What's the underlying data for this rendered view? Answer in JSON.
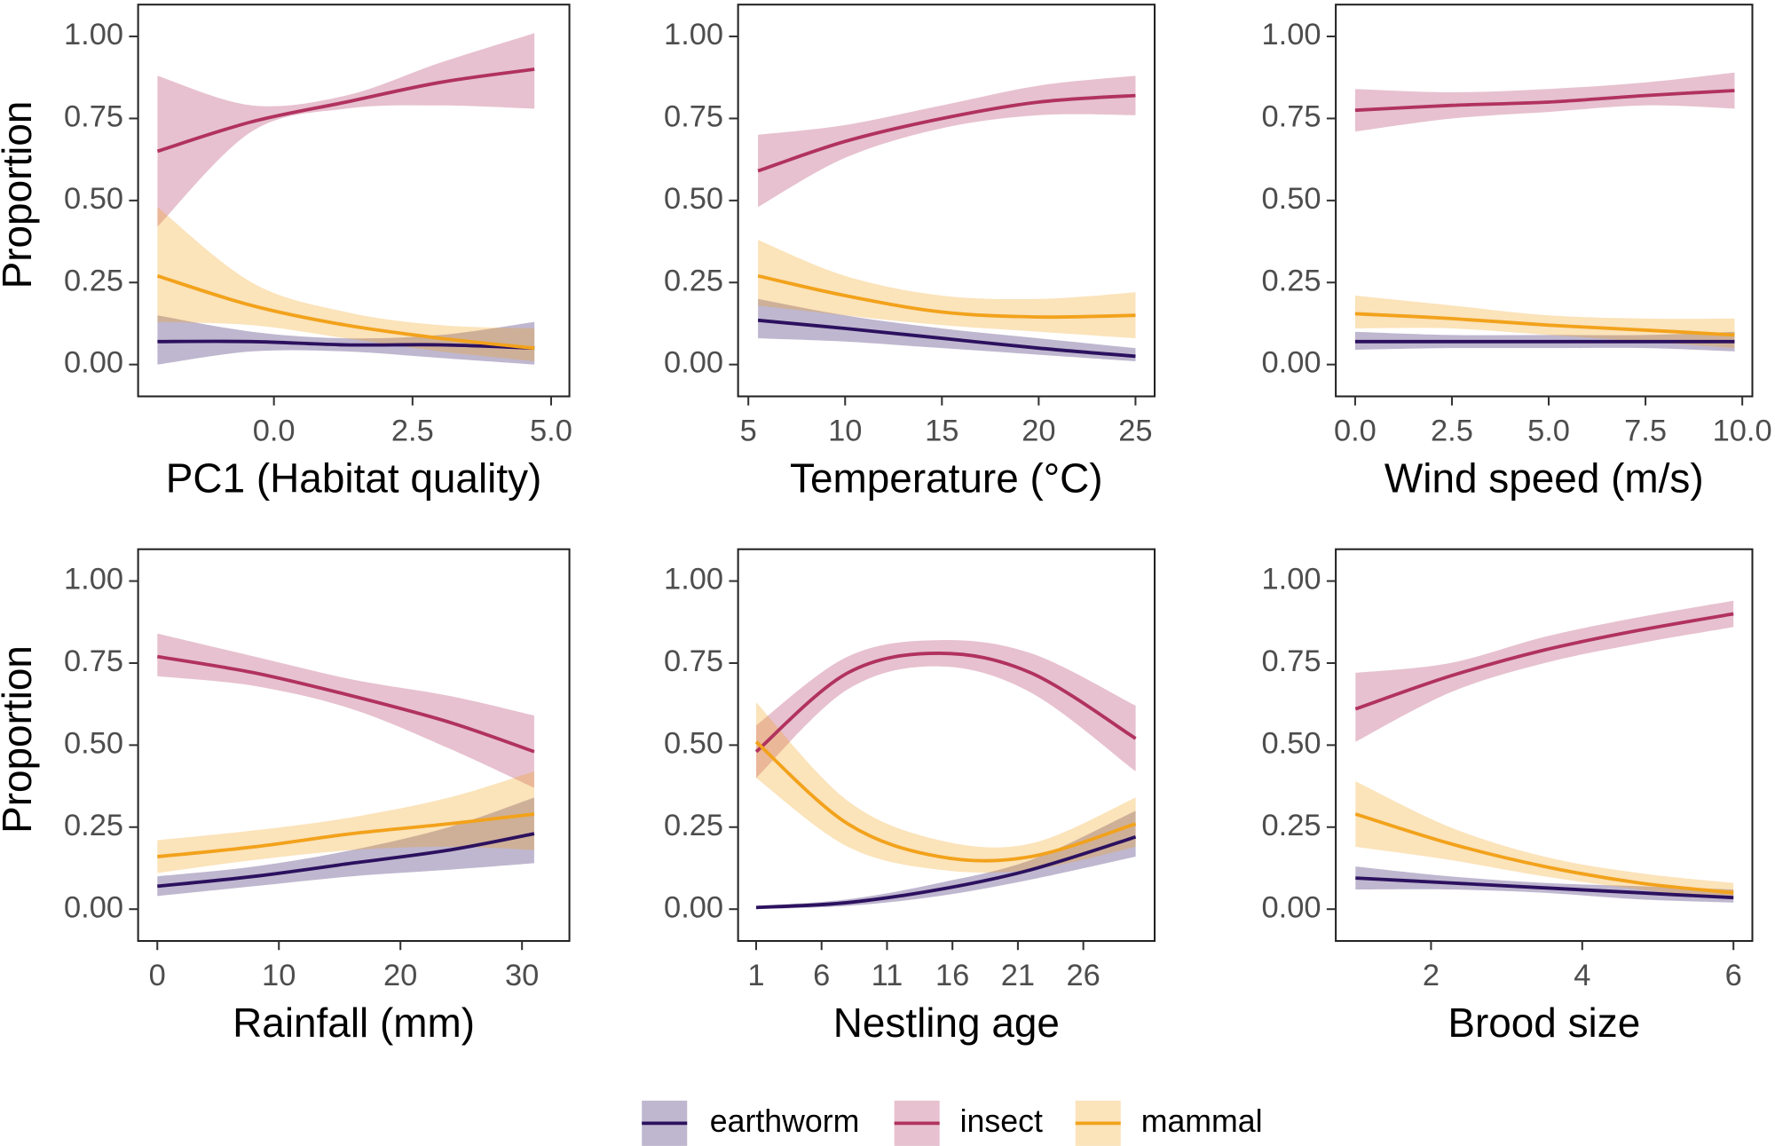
{
  "chart_data": [
    {
      "type": "line",
      "x_label": "PC1 (Habitat quality)",
      "y_label": "Proportion",
      "legend": "bottom",
      "xlim": [
        -2.45,
        5.33
      ],
      "xticks": [
        {
          "value": 0,
          "label": "0.0"
        },
        {
          "value": 2.5,
          "label": "2.5"
        },
        {
          "value": 5,
          "label": "5.0"
        }
      ],
      "ylim": [
        -0.097,
        1.097
      ],
      "yticks": [
        {
          "value": 0,
          "label": "0.00"
        },
        {
          "value": 0.25,
          "label": "0.25"
        },
        {
          "value": 0.5,
          "label": "0.50"
        },
        {
          "value": 0.75,
          "label": "0.75"
        },
        {
          "value": 1,
          "label": "1.00"
        }
      ],
      "x": [
        -2.1,
        -0.4,
        1.3,
        3.0,
        4.7
      ],
      "series": [
        {
          "name": "earthworm",
          "color": "#2c115f",
          "values": [
            0.07,
            0.07,
            0.06,
            0.06,
            0.05
          ],
          "lower": [
            0.0,
            0.04,
            0.04,
            0.02,
            0.0
          ],
          "upper": [
            0.15,
            0.1,
            0.08,
            0.09,
            0.13
          ]
        },
        {
          "name": "insect",
          "color": "#b1325f",
          "values": [
            0.65,
            0.74,
            0.8,
            0.86,
            0.9
          ],
          "lower": [
            0.42,
            0.71,
            0.78,
            0.79,
            0.78
          ],
          "upper": [
            0.88,
            0.79,
            0.82,
            0.92,
            1.01
          ]
        },
        {
          "name": "mammal",
          "color": "#f2a21b",
          "values": [
            0.27,
            0.18,
            0.12,
            0.08,
            0.05
          ],
          "lower": [
            0.13,
            0.12,
            0.08,
            0.04,
            0.01
          ],
          "upper": [
            0.48,
            0.25,
            0.16,
            0.12,
            0.11
          ]
        }
      ]
    },
    {
      "type": "line",
      "x_label": "Temperature (°C)",
      "xlim": [
        4.47,
        25.99
      ],
      "xticks": [
        5,
        10,
        15,
        20,
        25
      ],
      "ylim": [
        -0.097,
        1.097
      ],
      "yticks": [
        {
          "value": 0,
          "label": "0.00"
        },
        {
          "value": 0.25,
          "label": "0.25"
        },
        {
          "value": 0.5,
          "label": "0.50"
        },
        {
          "value": 0.75,
          "label": "0.75"
        },
        {
          "value": 1,
          "label": "1.00"
        }
      ],
      "x": [
        5.5,
        10,
        15,
        20,
        25
      ],
      "series": [
        {
          "name": "earthworm",
          "color": "#2c115f",
          "values": [
            0.135,
            0.11,
            0.08,
            0.05,
            0.025
          ],
          "lower": [
            0.08,
            0.07,
            0.05,
            0.03,
            0.01
          ],
          "upper": [
            0.2,
            0.15,
            0.11,
            0.08,
            0.05
          ]
        },
        {
          "name": "insect",
          "color": "#b1325f",
          "values": [
            0.59,
            0.68,
            0.75,
            0.8,
            0.82
          ],
          "lower": [
            0.48,
            0.63,
            0.72,
            0.76,
            0.76
          ],
          "upper": [
            0.7,
            0.73,
            0.79,
            0.85,
            0.88
          ]
        },
        {
          "name": "mammal",
          "color": "#f2a21b",
          "values": [
            0.27,
            0.21,
            0.16,
            0.145,
            0.15
          ],
          "lower": [
            0.18,
            0.15,
            0.12,
            0.1,
            0.08
          ],
          "upper": [
            0.38,
            0.27,
            0.21,
            0.2,
            0.22
          ]
        }
      ]
    },
    {
      "type": "line",
      "x_label": "Wind speed (m/s)",
      "xlim": [
        -0.5,
        10.26
      ],
      "xticks": [
        {
          "value": 0,
          "label": "0.0"
        },
        {
          "value": 2.5,
          "label": "2.5"
        },
        {
          "value": 5,
          "label": "5.0"
        },
        {
          "value": 7.5,
          "label": "7.5"
        },
        {
          "value": 10,
          "label": "10.0"
        }
      ],
      "ylim": [
        -0.097,
        1.097
      ],
      "yticks": [
        {
          "value": 0,
          "label": "0.00"
        },
        {
          "value": 0.25,
          "label": "0.25"
        },
        {
          "value": 0.5,
          "label": "0.50"
        },
        {
          "value": 0.75,
          "label": "0.75"
        },
        {
          "value": 1,
          "label": "1.00"
        }
      ],
      "x": [
        0,
        2.5,
        5,
        7.5,
        9.8
      ],
      "series": [
        {
          "name": "earthworm",
          "color": "#2c115f",
          "values": [
            0.07,
            0.07,
            0.07,
            0.07,
            0.07
          ],
          "lower": [
            0.045,
            0.05,
            0.05,
            0.05,
            0.04
          ],
          "upper": [
            0.1,
            0.09,
            0.09,
            0.09,
            0.1
          ]
        },
        {
          "name": "insect",
          "color": "#b1325f",
          "values": [
            0.775,
            0.79,
            0.8,
            0.82,
            0.835
          ],
          "lower": [
            0.71,
            0.75,
            0.77,
            0.79,
            0.78
          ],
          "upper": [
            0.84,
            0.83,
            0.84,
            0.86,
            0.89
          ]
        },
        {
          "name": "mammal",
          "color": "#f2a21b",
          "values": [
            0.155,
            0.14,
            0.12,
            0.105,
            0.09
          ],
          "lower": [
            0.11,
            0.11,
            0.09,
            0.07,
            0.05
          ],
          "upper": [
            0.21,
            0.18,
            0.15,
            0.14,
            0.14
          ]
        }
      ]
    },
    {
      "type": "line",
      "x_label": "Rainfall (mm)",
      "y_label": "Proportion",
      "xlim": [
        -1.58,
        33.9
      ],
      "xticks": [
        0,
        10,
        20,
        30
      ],
      "ylim": [
        -0.097,
        1.097
      ],
      "yticks": [
        {
          "value": 0,
          "label": "0.00"
        },
        {
          "value": 0.25,
          "label": "0.25"
        },
        {
          "value": 0.5,
          "label": "0.50"
        },
        {
          "value": 0.75,
          "label": "0.75"
        },
        {
          "value": 1,
          "label": "1.00"
        }
      ],
      "x": [
        0,
        8,
        16,
        24,
        31
      ],
      "series": [
        {
          "name": "earthworm",
          "color": "#2c115f",
          "values": [
            0.07,
            0.1,
            0.14,
            0.18,
            0.23
          ],
          "lower": [
            0.04,
            0.07,
            0.1,
            0.12,
            0.14
          ],
          "upper": [
            0.1,
            0.13,
            0.18,
            0.25,
            0.34
          ]
        },
        {
          "name": "insect",
          "color": "#b1325f",
          "values": [
            0.77,
            0.72,
            0.65,
            0.57,
            0.48
          ],
          "lower": [
            0.71,
            0.68,
            0.61,
            0.49,
            0.37
          ],
          "upper": [
            0.84,
            0.77,
            0.7,
            0.65,
            0.59
          ]
        },
        {
          "name": "mammal",
          "color": "#f2a21b",
          "values": [
            0.16,
            0.19,
            0.23,
            0.26,
            0.29
          ],
          "lower": [
            0.11,
            0.15,
            0.18,
            0.19,
            0.18
          ],
          "upper": [
            0.21,
            0.24,
            0.28,
            0.34,
            0.42
          ]
        }
      ]
    },
    {
      "type": "line",
      "x_label": "Nestling age",
      "xlim": [
        -0.38,
        31.45
      ],
      "xticks": [
        1,
        6,
        11,
        16,
        21,
        26
      ],
      "ylim": [
        -0.097,
        1.097
      ],
      "yticks": [
        {
          "value": 0,
          "label": "0.00"
        },
        {
          "value": 0.25,
          "label": "0.25"
        },
        {
          "value": 0.5,
          "label": "0.50"
        },
        {
          "value": 0.75,
          "label": "0.75"
        },
        {
          "value": 1,
          "label": "1.00"
        }
      ],
      "x": [
        1,
        8,
        15,
        22,
        30
      ],
      "series": [
        {
          "name": "earthworm",
          "color": "#2c115f",
          "values": [
            0.005,
            0.02,
            0.06,
            0.12,
            0.22
          ],
          "lower": [
            0.0,
            0.01,
            0.04,
            0.09,
            0.16
          ],
          "upper": [
            0.01,
            0.03,
            0.08,
            0.15,
            0.3
          ]
        },
        {
          "name": "insect",
          "color": "#b1325f",
          "values": [
            0.48,
            0.72,
            0.78,
            0.72,
            0.52
          ],
          "lower": [
            0.4,
            0.67,
            0.74,
            0.66,
            0.42
          ],
          "upper": [
            0.56,
            0.77,
            0.82,
            0.78,
            0.62
          ]
        },
        {
          "name": "mammal",
          "color": "#f2a21b",
          "values": [
            0.51,
            0.26,
            0.16,
            0.16,
            0.26
          ],
          "lower": [
            0.4,
            0.19,
            0.12,
            0.12,
            0.19
          ],
          "upper": [
            0.63,
            0.33,
            0.21,
            0.2,
            0.34
          ]
        }
      ]
    },
    {
      "type": "line",
      "x_label": "Brood size",
      "xlim": [
        0.74,
        6.25
      ],
      "xticks": [
        2,
        4,
        6
      ],
      "ylim": [
        -0.097,
        1.097
      ],
      "yticks": [
        {
          "value": 0,
          "label": "0.00"
        },
        {
          "value": 0.25,
          "label": "0.25"
        },
        {
          "value": 0.5,
          "label": "0.50"
        },
        {
          "value": 0.75,
          "label": "0.75"
        },
        {
          "value": 1,
          "label": "1.00"
        }
      ],
      "x": [
        1,
        2.25,
        3.5,
        4.75,
        6
      ],
      "series": [
        {
          "name": "earthworm",
          "color": "#2c115f",
          "values": [
            0.095,
            0.08,
            0.065,
            0.05,
            0.035
          ],
          "lower": [
            0.06,
            0.06,
            0.05,
            0.03,
            0.02
          ],
          "upper": [
            0.13,
            0.1,
            0.08,
            0.07,
            0.06
          ]
        },
        {
          "name": "insect",
          "color": "#b1325f",
          "values": [
            0.61,
            0.71,
            0.79,
            0.85,
            0.9
          ],
          "lower": [
            0.51,
            0.66,
            0.75,
            0.81,
            0.86
          ],
          "upper": [
            0.72,
            0.75,
            0.83,
            0.89,
            0.94
          ]
        },
        {
          "name": "mammal",
          "color": "#f2a21b",
          "values": [
            0.29,
            0.2,
            0.13,
            0.08,
            0.05
          ],
          "lower": [
            0.19,
            0.15,
            0.1,
            0.06,
            0.03
          ],
          "upper": [
            0.39,
            0.25,
            0.16,
            0.11,
            0.08
          ]
        }
      ]
    }
  ]
}
